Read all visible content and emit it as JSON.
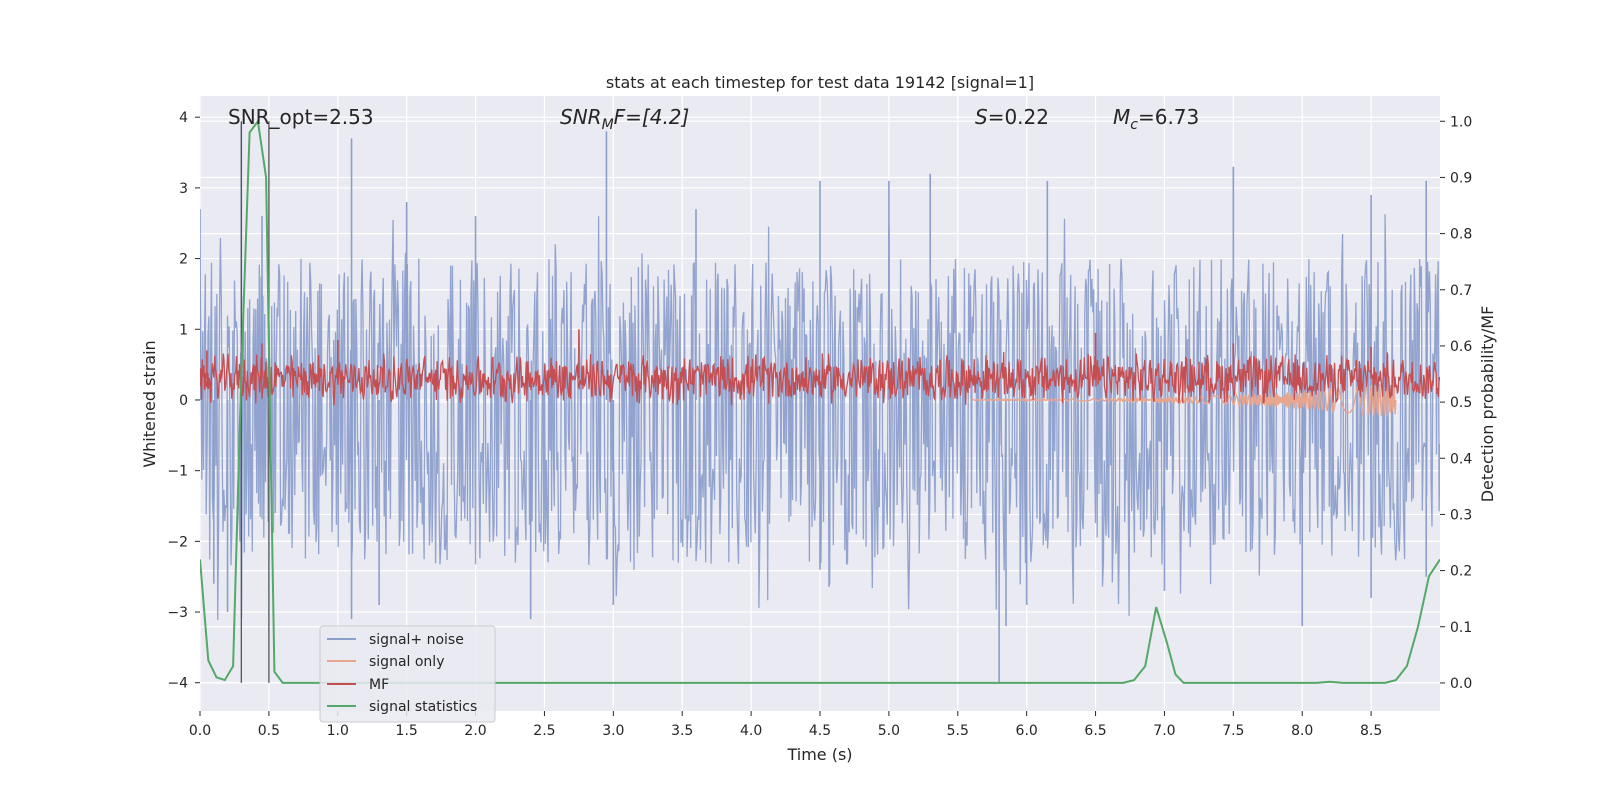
{
  "chart_data": {
    "type": "line",
    "title": "stats at each timestep for test data 19142 [signal=1]",
    "xlabel": "Time (s)",
    "ylabel_left": "Whitened strain",
    "ylabel_right": "Detection probability/MF",
    "xlim": [
      0,
      9.0
    ],
    "ylim_left": [
      -4.4,
      4.3
    ],
    "ylim_right": [
      -0.05,
      1.045
    ],
    "x_ticks": [
      "0.0",
      "0.5",
      "1.0",
      "1.5",
      "2.0",
      "2.5",
      "3.0",
      "3.5",
      "4.0",
      "4.5",
      "5.0",
      "5.5",
      "6.0",
      "6.5",
      "7.0",
      "7.5",
      "8.0",
      "8.5"
    ],
    "y_ticks_left": [
      "4",
      "3",
      "2",
      "1",
      "0",
      "−1",
      "−2",
      "−3",
      "−4"
    ],
    "y_ticks_right": [
      "1.0",
      "0.9",
      "0.8",
      "0.7",
      "0.6",
      "0.5",
      "0.4",
      "0.3",
      "0.2",
      "0.1",
      "0.0"
    ],
    "grid": true,
    "legend_position": "lower-left",
    "annotations": {
      "snr_opt": "SNR_opt=2.53",
      "snr_mf_sym": "SNR",
      "snr_mf_sub": "M",
      "snr_mf_rest": "F=[4.2]",
      "s_sym": "S",
      "s_rest": "=0.22",
      "mc_sym": "M",
      "mc_sub": "c",
      "mc_rest": "=6.73"
    },
    "markers": {
      "x": [
        0.3,
        0.5
      ],
      "color": "#555555"
    },
    "series": [
      {
        "name": "signal+ noise",
        "color": "#8c9fcb",
        "axis": "left",
        "envelope": {
          "peaks_upper": [
            [
              0.0,
              2.7
            ],
            [
              0.3,
              3.9
            ],
            [
              0.45,
              2.6
            ],
            [
              1.1,
              3.7
            ],
            [
              1.5,
              2.8
            ],
            [
              2.0,
              2.6
            ],
            [
              2.95,
              3.8
            ],
            [
              3.6,
              2.7
            ],
            [
              4.5,
              3.1
            ],
            [
              5.0,
              3.1
            ],
            [
              5.3,
              3.2
            ],
            [
              6.15,
              3.1
            ],
            [
              7.5,
              3.3
            ],
            [
              8.5,
              2.9
            ],
            [
              8.9,
              3.1
            ]
          ],
          "peaks_lower": [
            [
              0.1,
              -2.6
            ],
            [
              0.2,
              -3.0
            ],
            [
              1.1,
              -3.1
            ],
            [
              1.3,
              -2.9
            ],
            [
              2.4,
              -3.1
            ],
            [
              3.0,
              -2.9
            ],
            [
              4.5,
              -2.4
            ],
            [
              5.8,
              -4.0
            ],
            [
              5.85,
              -3.2
            ],
            [
              6.0,
              -2.9
            ],
            [
              7.0,
              -2.7
            ],
            [
              8.0,
              -3.2
            ],
            [
              8.5,
              -2.8
            ],
            [
              8.9,
              -2.5
            ]
          ],
          "band_upper": 1.0,
          "band_lower": -1.3
        }
      },
      {
        "name": "signal only",
        "color": "#e8a68f",
        "axis": "left",
        "chirp_start": 5.6,
        "chirp_end": 8.68,
        "final_amplitude": 0.25
      },
      {
        "name": "MF",
        "color": "#c44e52",
        "axis": "left",
        "baseline": 0.3,
        "amplitude": 0.35,
        "peaks": [
          [
            0.05,
            0.7
          ],
          [
            0.45,
            0.8
          ],
          [
            1.0,
            0.85
          ],
          [
            2.75,
            1.0
          ],
          [
            6.5,
            0.95
          ],
          [
            7.5,
            0.8
          ],
          [
            8.5,
            0.75
          ]
        ]
      },
      {
        "name": "signal statistics",
        "color": "#55a868",
        "axis": "right",
        "points": [
          [
            0.0,
            0.22
          ],
          [
            0.06,
            0.04
          ],
          [
            0.12,
            0.01
          ],
          [
            0.18,
            0.005
          ],
          [
            0.24,
            0.03
          ],
          [
            0.3,
            0.55
          ],
          [
            0.36,
            0.98
          ],
          [
            0.42,
            1.0
          ],
          [
            0.48,
            0.9
          ],
          [
            0.5,
            0.6
          ],
          [
            0.54,
            0.02
          ],
          [
            0.6,
            0.0
          ],
          [
            6.7,
            0.0
          ],
          [
            6.78,
            0.005
          ],
          [
            6.86,
            0.03
          ],
          [
            6.94,
            0.135
          ],
          [
            7.02,
            0.07
          ],
          [
            7.08,
            0.015
          ],
          [
            7.14,
            0.0
          ],
          [
            8.1,
            0.0
          ],
          [
            8.2,
            0.002
          ],
          [
            8.3,
            0.0
          ],
          [
            8.6,
            0.0
          ],
          [
            8.68,
            0.005
          ],
          [
            8.76,
            0.03
          ],
          [
            8.84,
            0.1
          ],
          [
            8.92,
            0.19
          ],
          [
            9.0,
            0.22
          ]
        ]
      }
    ]
  }
}
